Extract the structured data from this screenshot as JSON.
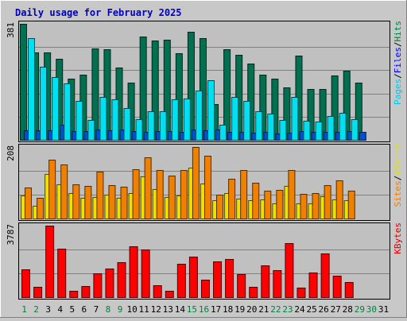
{
  "chart_data": {
    "type": "bar",
    "title": "Daily usage for February 2025",
    "categories": [
      "1",
      "2",
      "3",
      "4",
      "5",
      "6",
      "7",
      "8",
      "9",
      "10",
      "11",
      "12",
      "13",
      "14",
      "15",
      "16",
      "17",
      "18",
      "19",
      "20",
      "21",
      "22",
      "23",
      "24",
      "25",
      "26",
      "27",
      "28",
      "29",
      "30",
      "31"
    ],
    "weekend_days": [
      1,
      2,
      8,
      9,
      15,
      16,
      22,
      23,
      29,
      30
    ],
    "panels": [
      {
        "name": "hits-files-pages",
        "ymax_label": "381",
        "ymax": 381,
        "right_labels": [
          {
            "text": "Pages",
            "color": "#00c8f0"
          },
          {
            "text": "Files",
            "color": "#0000ff"
          },
          {
            "text": "Hits",
            "color": "#008040"
          }
        ],
        "series": [
          {
            "name": "Hits",
            "color": "#007050",
            "values": [
              381,
              287,
              286,
              267,
              201,
              214,
              300,
              298,
              237,
              189,
              339,
              325,
              328,
              284,
              355,
              334,
              117,
              298,
              279,
              251,
              213,
              201,
              173,
              277,
              167,
              166,
              212,
              226,
              188,
              0,
              0
            ]
          },
          {
            "name": "Files",
            "color": "#0050d0",
            "values": [
              32,
              31,
              32,
              49,
              29,
              29,
              35,
              32,
              34,
              30,
              27,
              29,
              30,
              27,
              33,
              32,
              34,
              26,
              26,
              23,
              26,
              22,
              24,
              29,
              26,
              27,
              26,
              30,
              26,
              0,
              0
            ]
          },
          {
            "name": "Pages",
            "color": "#00e0f0",
            "values": [
              333,
              240,
              205,
              186,
              129,
              65,
              140,
              134,
              105,
              68,
              93,
              93,
              134,
              136,
              163,
              196,
              49,
              141,
              128,
              93,
              87,
              64,
              140,
              63,
              61,
              78,
              90,
              67,
              0,
              0,
              0
            ]
          }
        ]
      },
      {
        "name": "visits-sites",
        "ymax_label": "208",
        "ymax": 208,
        "right_labels": [
          {
            "text": "Sites",
            "color": "#f08000"
          },
          {
            "text": "Visits",
            "color": "#e0e000"
          }
        ],
        "series": [
          {
            "name": "Visits",
            "color": "#f0e000",
            "values": [
              68,
              36,
              130,
              100,
              75,
              59,
              63,
              69,
              61,
              73,
              123,
              85,
              63,
              67,
              149,
              102,
              53,
              75,
              58,
              53,
              56,
              44,
              94,
              44,
              45,
              65,
              56,
              52,
              0,
              0,
              0
            ]
          },
          {
            "name": "Sites",
            "color": "#f08000",
            "values": [
              90,
              59,
              172,
              157,
              100,
              95,
              136,
              96,
              92,
              143,
              179,
              140,
              124,
              140,
              208,
              182,
              69,
              116,
              140,
              103,
              81,
              84,
              142,
              71,
              75,
              98,
              110,
              82,
              0,
              0,
              0
            ]
          }
        ]
      },
      {
        "name": "kbytes",
        "ymax_label": "3787",
        "ymax": 3787,
        "right_labels": [
          {
            "text": "KBytes",
            "color": "#e00000"
          }
        ],
        "series": [
          {
            "name": "KBytes",
            "color": "#ff0000",
            "values": [
              1462,
              555,
              3787,
              2564,
              352,
              581,
              1274,
              1497,
              1853,
              2703,
              2514,
              638,
              320,
              1784,
              2137,
              931,
              1911,
              2037,
              1212,
              558,
              1672,
              1430,
              2860,
              501,
              1305,
              2321,
              1139,
              792,
              0,
              0,
              0
            ]
          }
        ]
      }
    ]
  }
}
